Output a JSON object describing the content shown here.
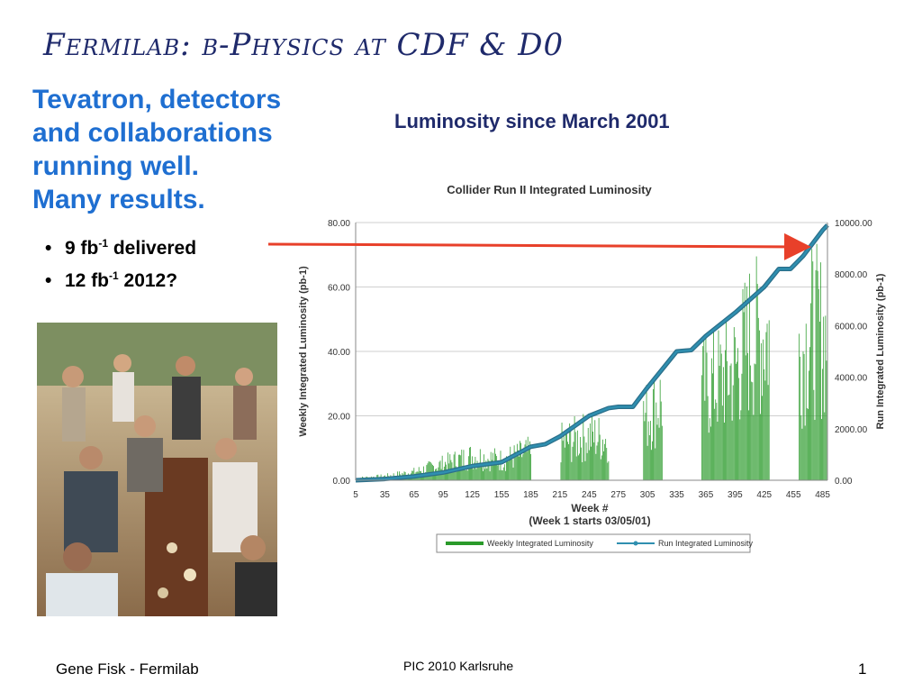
{
  "slide": {
    "title": "Fermilab: b-Physics at CDF & D0",
    "lead_lines": [
      "Tevatron, detectors",
      "and collaborations",
      "running well.",
      "Many results."
    ],
    "bullets": [
      {
        "base": "9 fb",
        "sup": "-1",
        "rest": " delivered"
      },
      {
        "base": "12 fb",
        "sup": "-1",
        "rest": "  2012?"
      }
    ],
    "chart_heading": "Luminosity since March 2001",
    "footer_left": "Gene Fisk - Fermilab",
    "footer_center": "PIC 2010 Karlsruhe",
    "page_number": "1",
    "arrow_color": "#e8402a"
  },
  "chart_data": {
    "type": "bar",
    "title": "Collider Run II Integrated Luminosity",
    "xlabel": "Week #",
    "xlabel_note": "(Week 1 starts 03/05/01)",
    "ylabel_left": "Weekly Integrated Luminosity (pb-1)",
    "ylabel_right": "Run Integrated Luminosity (pb-1)",
    "y_left_ticks": [
      "0.00",
      "20.00",
      "40.00",
      "60.00",
      "80.00"
    ],
    "y_right_ticks": [
      "0.00",
      "2000.00",
      "4000.00",
      "6000.00",
      "8000.00",
      "10000.00"
    ],
    "x_ticks": [
      "5",
      "35",
      "65",
      "95",
      "125",
      "155",
      "185",
      "215",
      "245",
      "275",
      "305",
      "335",
      "365",
      "395",
      "425",
      "455",
      "485"
    ],
    "ylim_left": [
      0,
      80
    ],
    "ylim_right": [
      0,
      10000
    ],
    "xlim": [
      5,
      490
    ],
    "legend": [
      "Weekly Integrated Luminosity",
      "Run Integrated Luminosity"
    ],
    "legend_position": "bottom",
    "colors": {
      "weekly": "#2a9a2a",
      "run": "#2f8fb0"
    },
    "weekly_envelope": [
      [
        5,
        1
      ],
      [
        35,
        2
      ],
      [
        65,
        4
      ],
      [
        95,
        8
      ],
      [
        125,
        12
      ],
      [
        155,
        10
      ],
      [
        185,
        14
      ],
      [
        200,
        0
      ],
      [
        215,
        18
      ],
      [
        245,
        22
      ],
      [
        265,
        20
      ],
      [
        275,
        0
      ],
      [
        290,
        0
      ],
      [
        300,
        30
      ],
      [
        320,
        40
      ],
      [
        335,
        0
      ],
      [
        350,
        0
      ],
      [
        360,
        45
      ],
      [
        380,
        50
      ],
      [
        395,
        55
      ],
      [
        410,
        70
      ],
      [
        430,
        72
      ],
      [
        440,
        0
      ],
      [
        452,
        0
      ],
      [
        460,
        60
      ],
      [
        475,
        75
      ],
      [
        490,
        70
      ]
    ],
    "run_integrated": [
      [
        5,
        0
      ],
      [
        35,
        50
      ],
      [
        65,
        150
      ],
      [
        95,
        300
      ],
      [
        125,
        550
      ],
      [
        155,
        700
      ],
      [
        185,
        1300
      ],
      [
        200,
        1400
      ],
      [
        215,
        1700
      ],
      [
        245,
        2500
      ],
      [
        265,
        2800
      ],
      [
        275,
        2850
      ],
      [
        290,
        2850
      ],
      [
        305,
        3600
      ],
      [
        320,
        4300
      ],
      [
        335,
        5000
      ],
      [
        350,
        5050
      ],
      [
        365,
        5600
      ],
      [
        395,
        6500
      ],
      [
        425,
        7500
      ],
      [
        440,
        8200
      ],
      [
        452,
        8200
      ],
      [
        465,
        8700
      ],
      [
        485,
        9700
      ],
      [
        490,
        9900
      ]
    ]
  }
}
